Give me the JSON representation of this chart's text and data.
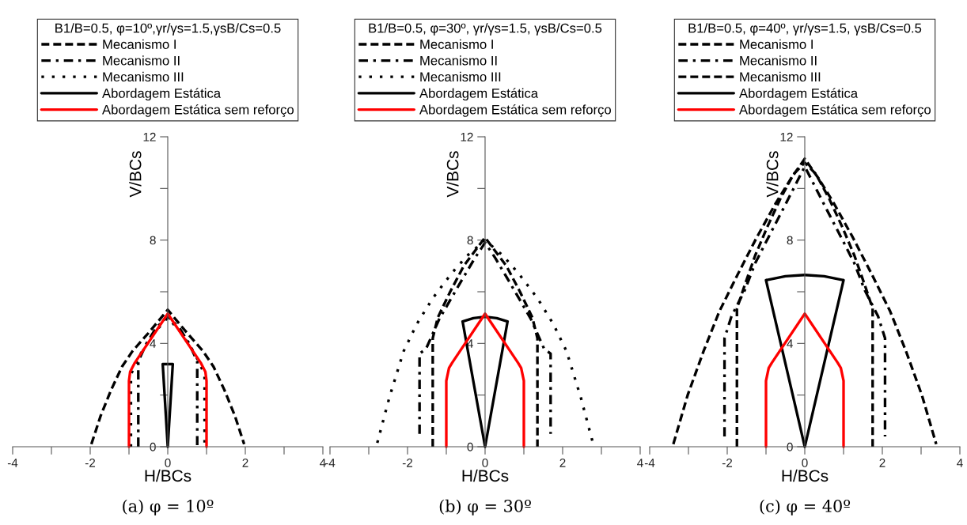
{
  "chart_data": [
    {
      "type": "line",
      "legend_title": "B1/B=0.5, φ=10º,γr/γs=1.5,γsB/Cs=0.5",
      "xlabel": "H/BCs",
      "ylabel": "V/BCs",
      "xlim": [
        -4,
        4
      ],
      "ylim": [
        0,
        12
      ],
      "xticks": [
        -4,
        {
          "value": -3,
          "label": null
        },
        -2,
        {
          "value": -1,
          "label": null
        },
        0,
        {
          "value": 1,
          "label": null
        },
        2,
        {
          "value": 3,
          "label": null
        },
        4
      ],
      "yticks": [
        0,
        {
          "value": 2,
          "label": null
        },
        4,
        {
          "value": 6,
          "label": null
        },
        8,
        {
          "value": 10,
          "label": null
        },
        12
      ],
      "legend": "top",
      "grid": false,
      "annotations": [
        "(a) φ = 10º"
      ],
      "series": [
        {
          "name": "Mecanismo I",
          "color": "#000000",
          "line_style": "dashed",
          "x": [
            -1.97,
            -1.73,
            -1.46,
            -1.18,
            -0.91,
            -0.5,
            0,
            0.5,
            0.91,
            1.18,
            1.46,
            1.73,
            1.97
          ],
          "values": [
            0.1,
            1.2,
            2.2,
            3.1,
            3.7,
            4.4,
            5.3,
            4.4,
            3.7,
            3.1,
            2.2,
            1.2,
            0.1
          ]
        },
        {
          "name": "Mecanismo II",
          "color": "#000000",
          "line_style": "dashdot",
          "x": [
            -0.76,
            -0.76,
            -0.55,
            -0.3,
            0,
            0.3,
            0.55,
            0.76,
            0.76
          ],
          "values": [
            0,
            3.3,
            4.0,
            4.6,
            5.05,
            4.6,
            4.0,
            3.3,
            0
          ]
        },
        {
          "name": "Mecanismo III",
          "color": "#000000",
          "line_style": "dotted",
          "x": [
            -0.95,
            -0.95,
            -0.7,
            -0.35,
            0,
            0.35,
            0.7,
            0.95,
            0.95
          ],
          "values": [
            0,
            2.8,
            3.6,
            4.4,
            5.0,
            4.4,
            3.6,
            2.8,
            0
          ]
        },
        {
          "name": "Abordagem Estática",
          "color": "#000000",
          "line_style": "solid",
          "x": [
            -0.13,
            0,
            0.13,
            null,
            -0.13,
            0.13
          ],
          "values": [
            3.2,
            0,
            3.2,
            null,
            3.2,
            3.2
          ]
        },
        {
          "name": "Abordagem Estática sem reforço",
          "color": "#ff0000",
          "line_style": "solid",
          "x": [
            -1,
            -1,
            -0.97,
            -0.85,
            0,
            0.85,
            0.97,
            1,
            1
          ],
          "values": [
            0,
            2.55,
            2.9,
            3.25,
            5.15,
            3.25,
            2.9,
            2.55,
            0
          ]
        }
      ]
    },
    {
      "type": "line",
      "legend_title": "B1/B=0.5, φ=30º, γr/γs=1.5, γsB/Cs=0.5",
      "xlabel": "H/BCs",
      "ylabel": "V/BCs",
      "xlim": [
        -4,
        4
      ],
      "ylim": [
        0,
        12
      ],
      "xticks": [
        -4,
        {
          "value": -3,
          "label": null
        },
        -2,
        {
          "value": -1,
          "label": null
        },
        0,
        {
          "value": 1,
          "label": null
        },
        2,
        {
          "value": 3,
          "label": null
        },
        4
      ],
      "yticks": [
        0,
        {
          "value": 2,
          "label": null
        },
        4,
        {
          "value": 6,
          "label": null
        },
        8,
        {
          "value": 10,
          "label": null
        },
        12
      ],
      "legend": "top",
      "grid": false,
      "annotations": [
        "(b) φ = 30º"
      ],
      "series": [
        {
          "name": "Mecanismo I",
          "color": "#000000",
          "line_style": "dashed",
          "x": [
            -1.35,
            -1.35,
            -1.22,
            -0.9,
            -0.55,
            0,
            0.55,
            0.9,
            1.22,
            1.35,
            1.35
          ],
          "values": [
            0,
            4.2,
            5.0,
            6.0,
            7.0,
            8.1,
            7.0,
            6.0,
            5.0,
            4.2,
            0
          ]
        },
        {
          "name": "Mecanismo II",
          "color": "#000000",
          "line_style": "dashdot",
          "x": [
            -1.69,
            -1.69,
            -1.52,
            -1.18,
            -0.67,
            -0.27,
            0,
            0.27,
            0.67,
            1.18,
            1.52,
            1.69,
            1.69
          ],
          "values": [
            0.5,
            3.6,
            3.8,
            4.95,
            6.27,
            7.29,
            7.9,
            7.29,
            6.27,
            4.95,
            3.8,
            3.6,
            0.5
          ]
        },
        {
          "name": "Mecanismo III",
          "color": "#000000",
          "line_style": "dotted",
          "x": [
            -2.78,
            -2.47,
            -2.1,
            -1.76,
            -1.35,
            -0.87,
            -0.46,
            0,
            0.46,
            0.87,
            1.35,
            1.76,
            2.1,
            2.47,
            2.78
          ],
          "values": [
            0.15,
            1.9,
            3.7,
            4.75,
            5.75,
            6.7,
            7.4,
            8.0,
            7.4,
            6.7,
            5.75,
            4.75,
            3.7,
            1.9,
            0.15
          ]
        },
        {
          "name": "Abordagem Estática",
          "color": "#000000",
          "line_style": "solid",
          "x": [
            -0.58,
            0,
            0.58,
            null,
            -0.58,
            -0.3,
            0,
            0.3,
            0.58
          ],
          "values": [
            4.85,
            0,
            4.85,
            null,
            4.85,
            4.98,
            5.03,
            4.98,
            4.85
          ]
        },
        {
          "name": "Abordagem Estática sem reforço",
          "color": "#ff0000",
          "line_style": "solid",
          "x": [
            -1,
            -1,
            -0.93,
            -0.85,
            0,
            0.85,
            0.93,
            1,
            1
          ],
          "values": [
            0,
            2.55,
            3.05,
            3.25,
            5.15,
            3.25,
            3.05,
            2.55,
            0
          ]
        }
      ]
    },
    {
      "type": "line",
      "legend_title": "B1/B=0.5, φ=40º, γr/γs=1.5, γsB/Cs=0.5",
      "xlabel": "H/BCs",
      "ylabel": "V/BCs",
      "xlim": [
        -4,
        4
      ],
      "ylim": [
        0,
        12
      ],
      "xticks": [
        -4,
        {
          "value": -3,
          "label": null
        },
        -2,
        {
          "value": -1,
          "label": null
        },
        0,
        {
          "value": 1,
          "label": null
        },
        2,
        {
          "value": 3,
          "label": null
        },
        4
      ],
      "yticks": [
        0,
        {
          "value": 2,
          "label": null
        },
        4,
        {
          "value": 6,
          "label": null
        },
        8,
        {
          "value": 10,
          "label": null
        },
        12
      ],
      "legend": "top",
      "grid": false,
      "annotations": [
        "(c) φ = 40º"
      ],
      "series": [
        {
          "name": "Mecanismo I",
          "color": "#000000",
          "line_style": "dashed",
          "x": [
            -3.39,
            -3.02,
            -2.61,
            -2.2,
            -1.72,
            -1.24,
            -0.76,
            -0.35,
            0,
            0.35,
            0.76,
            1.24,
            1.72,
            2.2,
            2.61,
            3.02,
            3.39
          ],
          "values": [
            0.1,
            2.0,
            3.7,
            5.25,
            6.7,
            8.1,
            9.4,
            10.4,
            11.15,
            10.4,
            9.4,
            8.1,
            6.7,
            5.25,
            3.7,
            2.0,
            0.1
          ]
        },
        {
          "name": "Mecanismo II",
          "color": "#000000",
          "line_style": "dashdot",
          "x": [
            -2.07,
            -2.07,
            -1.89,
            -1.55,
            -1.28,
            -0.94,
            -0.56,
            -0.22,
            0,
            0.22,
            0.56,
            0.94,
            1.28,
            1.55,
            1.89,
            2.07,
            2.07
          ],
          "values": [
            0.4,
            4.2,
            5.05,
            6.05,
            7.1,
            8.1,
            9.2,
            10.2,
            10.85,
            10.2,
            9.2,
            8.1,
            7.1,
            6.05,
            5.05,
            4.2,
            0.4
          ]
        },
        {
          "name": "Mecanismo III",
          "color": "#000000",
          "line_style": "dashed",
          "x": [
            -1.75,
            -1.75,
            -1.55,
            -1.28,
            -0.97,
            -0.63,
            -0.29,
            0,
            0.29,
            0.63,
            0.97,
            1.28,
            1.55,
            1.75,
            1.75
          ],
          "values": [
            0,
            5.35,
            6.25,
            7.4,
            8.5,
            9.6,
            10.55,
            11.0,
            10.55,
            9.6,
            8.5,
            7.4,
            6.25,
            5.35,
            0
          ]
        },
        {
          "name": "Abordagem Estática",
          "color": "#000000",
          "line_style": "solid",
          "x": [
            -1.0,
            0,
            1.0,
            null,
            -1.0,
            -0.5,
            0,
            0.5,
            1.0
          ],
          "values": [
            6.45,
            0,
            6.45,
            null,
            6.45,
            6.6,
            6.65,
            6.6,
            6.45
          ]
        },
        {
          "name": "Abordagem Estática sem reforço",
          "color": "#ff0000",
          "line_style": "solid",
          "x": [
            -1,
            -1,
            -0.93,
            -0.85,
            0,
            0.85,
            0.93,
            1,
            1
          ],
          "values": [
            0,
            2.55,
            3.05,
            3.25,
            5.15,
            3.25,
            3.05,
            2.55,
            0
          ]
        }
      ]
    }
  ]
}
